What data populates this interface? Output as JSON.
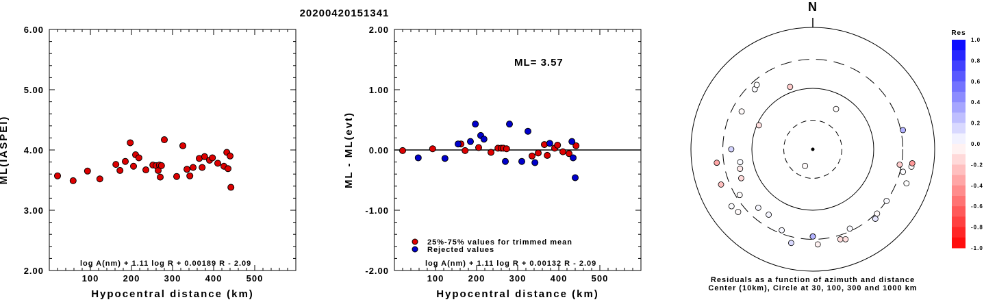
{
  "title": "20200420151341",
  "chart_data": [
    {
      "type": "scatter",
      "xlabel": "Hypocentral distance (km)",
      "ylabel": "ML(IASPEI)",
      "xlim": [
        0,
        600
      ],
      "ylim": [
        2.0,
        6.0
      ],
      "xticks": [
        "100",
        "200",
        "300",
        "400",
        "500"
      ],
      "yticks": [
        "2.00",
        "3.00",
        "4.00",
        "5.00",
        "6.00"
      ],
      "formula": "log A(nm) + 1.11 log R + 0.00189 R - 2.09",
      "color": "#dd0000",
      "points": [
        [
          20,
          3.57
        ],
        [
          58,
          3.49
        ],
        [
          93,
          3.65
        ],
        [
          123,
          3.52
        ],
        [
          162,
          3.76
        ],
        [
          172,
          3.66
        ],
        [
          185,
          3.81
        ],
        [
          197,
          4.12
        ],
        [
          205,
          3.73
        ],
        [
          210,
          3.92
        ],
        [
          218,
          3.87
        ],
        [
          235,
          3.67
        ],
        [
          252,
          3.75
        ],
        [
          260,
          3.74
        ],
        [
          265,
          3.66
        ],
        [
          268,
          3.75
        ],
        [
          270,
          3.55
        ],
        [
          273,
          3.74
        ],
        [
          280,
          4.17
        ],
        [
          310,
          3.56
        ],
        [
          325,
          4.07
        ],
        [
          335,
          3.68
        ],
        [
          342,
          3.57
        ],
        [
          350,
          3.71
        ],
        [
          365,
          3.86
        ],
        [
          372,
          3.71
        ],
        [
          378,
          3.89
        ],
        [
          390,
          3.83
        ],
        [
          397,
          3.87
        ],
        [
          410,
          3.78
        ],
        [
          425,
          3.73
        ],
        [
          432,
          3.96
        ],
        [
          435,
          3.69
        ],
        [
          440,
          3.9
        ],
        [
          442,
          3.38
        ]
      ]
    },
    {
      "type": "scatter",
      "xlabel": "Hypocentral distance (km)",
      "ylabel": "ML - ML(evt)",
      "xlim": [
        0,
        600
      ],
      "ylim": [
        -2.0,
        2.0
      ],
      "xticks": [
        "100",
        "200",
        "300",
        "400",
        "500"
      ],
      "yticks": [
        "-2.00",
        "-1.00",
        "0.00",
        "1.00",
        "2.00"
      ],
      "annotation": "ML= 3.57",
      "formula": "log A(nm) + 1.11 log R + 0.00132 R - 2.09",
      "legend": [
        {
          "label": "25%-75% values for trimmed mean",
          "color": "#dd0000"
        },
        {
          "label": "Rejected values",
          "color": "#0000cc"
        }
      ],
      "series": [
        {
          "name": "25%-75% values for trimmed mean",
          "color": "#dd0000",
          "points": [
            [
              20,
              -0.01
            ],
            [
              93,
              0.02
            ],
            [
              162,
              0.1
            ],
            [
              172,
              -0.01
            ],
            [
              205,
              0.04
            ],
            [
              235,
              -0.04
            ],
            [
              252,
              0.03
            ],
            [
              260,
              0.03
            ],
            [
              265,
              0.03
            ],
            [
              273,
              0.02
            ],
            [
              335,
              -0.1
            ],
            [
              350,
              -0.05
            ],
            [
              365,
              0.09
            ],
            [
              372,
              -0.09
            ],
            [
              390,
              0.03
            ],
            [
              397,
              0.08
            ],
            [
              410,
              -0.03
            ],
            [
              425,
              -0.06
            ],
            [
              442,
              0.07
            ]
          ]
        },
        {
          "name": "Rejected values",
          "color": "#0000cc",
          "points": [
            [
              58,
              -0.13
            ],
            [
              123,
              -0.14
            ],
            [
              155,
              0.1
            ],
            [
              185,
              0.14
            ],
            [
              197,
              0.43
            ],
            [
              210,
              0.24
            ],
            [
              218,
              0.18
            ],
            [
              270,
              -0.19
            ],
            [
              280,
              0.43
            ],
            [
              310,
              -0.19
            ],
            [
              325,
              0.31
            ],
            [
              342,
              -0.21
            ],
            [
              378,
              0.11
            ],
            [
              432,
              0.14
            ],
            [
              435,
              -0.13
            ],
            [
              440,
              -0.46
            ]
          ]
        }
      ]
    },
    {
      "type": "polar-scatter",
      "north_label": "N",
      "caption_line1": "Residuals as a function of azimuth and distance",
      "caption_line2": "Center (10km), Circle at 30, 100, 300 and 1000 km",
      "rings_km": [
        30,
        100,
        300,
        1000
      ],
      "colorbar": {
        "title": "Res",
        "ticks": [
          "1.0",
          "0.8",
          "0.6",
          "0.4",
          "0.2",
          "0.0",
          "-0.2",
          "-0.4",
          "-0.6",
          "-0.8",
          "-1.0"
        ],
        "max_color": "#0000ff",
        "min_color": "#ff0000"
      },
      "stations": [
        {
          "az": 205,
          "dist": 20,
          "res": -0.02
        },
        {
          "az": 30,
          "dist": 58,
          "res": -0.01
        },
        {
          "az": 294,
          "dist": 93,
          "res": -0.13
        },
        {
          "az": 340,
          "dist": 123,
          "res": -0.2
        },
        {
          "az": 260,
          "dist": 162,
          "res": 0.02
        },
        {
          "az": 255,
          "dist": 172,
          "res": -0.08
        },
        {
          "az": 248,
          "dist": 185,
          "res": -0.15
        },
        {
          "az": 214,
          "dist": 197,
          "res": 0.04
        },
        {
          "az": 223,
          "dist": 205,
          "res": 0.03
        },
        {
          "az": 298,
          "dist": 210,
          "res": -0.02
        },
        {
          "az": 270,
          "dist": 218,
          "res": 0.17
        },
        {
          "az": 316,
          "dist": 235,
          "res": 0.01
        },
        {
          "az": 319,
          "dist": 252,
          "res": 0.0
        },
        {
          "az": 238,
          "dist": 260,
          "res": -0.01
        },
        {
          "az": 201,
          "dist": 265,
          "res": 0.03
        },
        {
          "az": 180,
          "dist": 268,
          "res": -0.2
        },
        {
          "az": 180,
          "dist": 270,
          "res": 0.3
        },
        {
          "az": 155,
          "dist": 273,
          "res": 0.02
        },
        {
          "az": 100,
          "dist": 280,
          "res": -0.2
        },
        {
          "az": 125,
          "dist": 300,
          "res": 0.02
        },
        {
          "az": 135,
          "dist": 310,
          "res": -0.02
        },
        {
          "az": 78,
          "dist": 325,
          "res": 0.3
        },
        {
          "az": 104,
          "dist": 335,
          "res": 0.01
        },
        {
          "az": 138,
          "dist": 342,
          "res": 0.1
        },
        {
          "az": 163,
          "dist": 350,
          "res": -0.13
        },
        {
          "az": 177,
          "dist": 365,
          "res": -0.05
        },
        {
          "az": 160,
          "dist": 372,
          "res": -0.12
        },
        {
          "az": 193,
          "dist": 378,
          "res": 0.15
        },
        {
          "az": 262,
          "dist": 390,
          "res": -0.35
        },
        {
          "az": 230,
          "dist": 397,
          "res": -0.02
        },
        {
          "az": 249,
          "dist": 410,
          "res": -0.25
        },
        {
          "az": 235,
          "dist": 425,
          "res": 0.01
        },
        {
          "az": 110,
          "dist": 432,
          "res": 0.0
        },
        {
          "az": 100,
          "dist": 440,
          "res": 0.0
        },
        {
          "az": 98,
          "dist": 445,
          "res": -0.4
        }
      ]
    }
  ]
}
